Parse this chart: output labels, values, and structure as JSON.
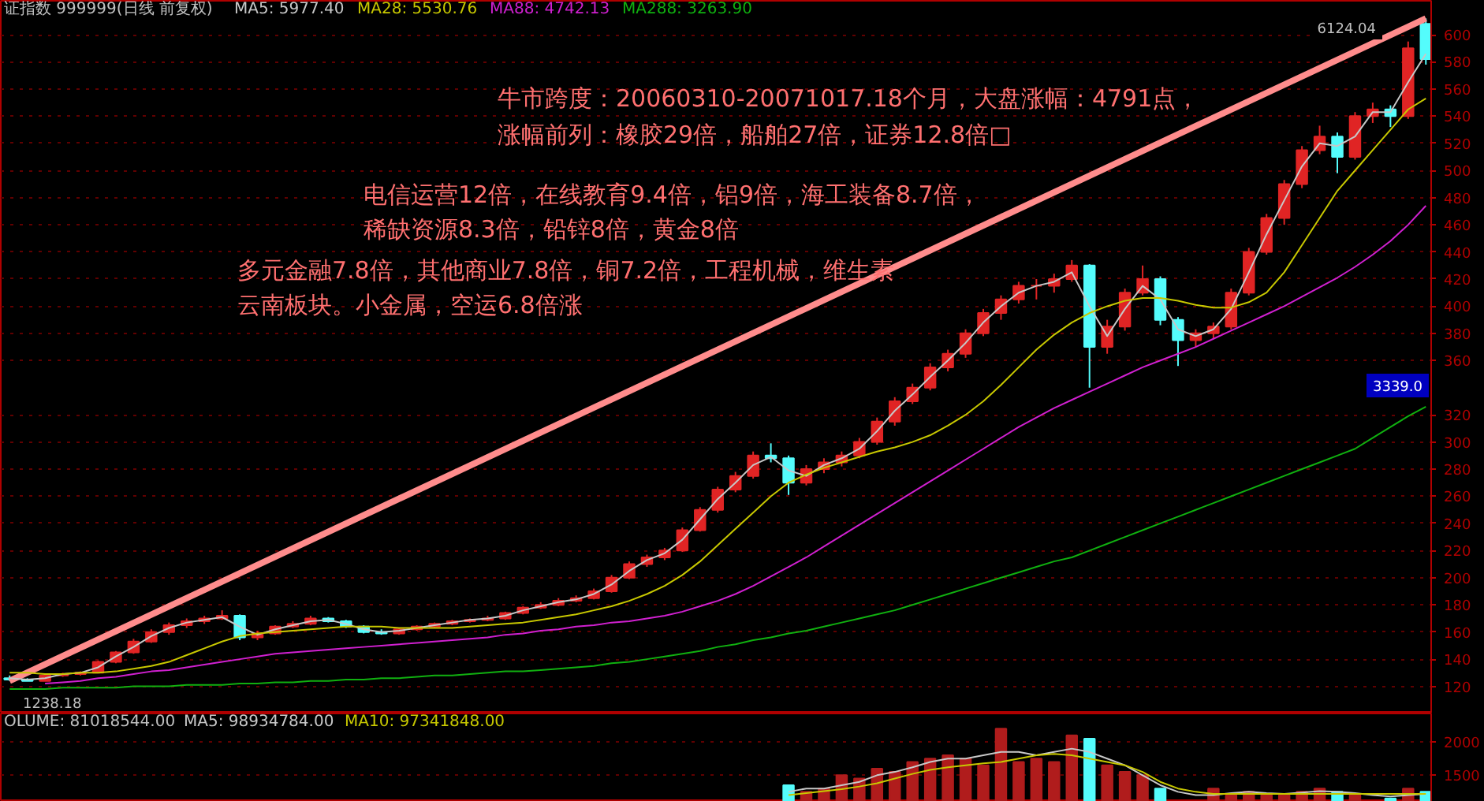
{
  "chart_data": [
    {
      "type": "candlestick",
      "title": "证指数 999999(日线 前复权)",
      "legend": "top left",
      "grid": "y",
      "tick_labels": "y",
      "categories": [
        null,
        null,
        null,
        null,
        null,
        null,
        null,
        null,
        null,
        null,
        null,
        null,
        null,
        null,
        null,
        null,
        null,
        null,
        null,
        null,
        null,
        null,
        null,
        null,
        null,
        null,
        null,
        null,
        null,
        null,
        null,
        null,
        null,
        null,
        null,
        null,
        null,
        null,
        null,
        null,
        null,
        null,
        null,
        null,
        null,
        null,
        null,
        null,
        null,
        null,
        null,
        null,
        null,
        null,
        null,
        null,
        null,
        null,
        null,
        null,
        null,
        null,
        null,
        null,
        null,
        null,
        null,
        null,
        null,
        null,
        null,
        null,
        null,
        null,
        null,
        null,
        null,
        null,
        null,
        null,
        null
      ],
      "ohlc": [
        [
          126,
          128,
          124,
          125
        ],
        [
          125,
          126,
          124,
          124
        ],
        [
          124,
          129,
          124,
          128
        ],
        [
          128,
          130,
          127,
          129
        ],
        [
          129,
          131,
          128,
          130
        ],
        [
          130,
          139,
          130,
          138
        ],
        [
          138,
          146,
          137,
          145
        ],
        [
          145,
          155,
          144,
          153
        ],
        [
          153,
          162,
          152,
          160
        ],
        [
          160,
          167,
          158,
          165
        ],
        [
          165,
          170,
          163,
          168
        ],
        [
          168,
          172,
          166,
          170
        ],
        [
          170,
          176,
          169,
          172
        ],
        [
          172,
          173,
          154,
          156
        ],
        [
          156,
          161,
          154,
          159
        ],
        [
          159,
          165,
          158,
          164
        ],
        [
          164,
          168,
          163,
          166
        ],
        [
          166,
          172,
          165,
          170
        ],
        [
          170,
          171,
          167,
          168
        ],
        [
          168,
          169,
          163,
          164
        ],
        [
          164,
          165,
          159,
          160
        ],
        [
          160,
          162,
          158,
          159
        ],
        [
          159,
          163,
          158,
          162
        ],
        [
          162,
          165,
          161,
          164
        ],
        [
          164,
          167,
          163,
          166
        ],
        [
          166,
          169,
          165,
          168
        ],
        [
          168,
          170,
          167,
          169
        ],
        [
          169,
          172,
          168,
          170
        ],
        [
          170,
          175,
          169,
          174
        ],
        [
          174,
          179,
          173,
          178
        ],
        [
          178,
          182,
          177,
          180
        ],
        [
          180,
          185,
          179,
          183
        ],
        [
          183,
          187,
          182,
          185
        ],
        [
          185,
          192,
          184,
          190
        ],
        [
          190,
          202,
          189,
          200
        ],
        [
          200,
          212,
          199,
          210
        ],
        [
          210,
          217,
          208,
          215
        ],
        [
          215,
          222,
          213,
          220
        ],
        [
          220,
          237,
          219,
          235
        ],
        [
          235,
          252,
          234,
          250
        ],
        [
          250,
          267,
          248,
          265
        ],
        [
          265,
          278,
          263,
          275
        ],
        [
          275,
          293,
          273,
          290
        ],
        [
          290,
          299,
          285,
          288
        ],
        [
          288,
          290,
          261,
          270
        ],
        [
          270,
          283,
          268,
          280
        ],
        [
          280,
          288,
          277,
          285
        ],
        [
          285,
          293,
          282,
          290
        ],
        [
          290,
          303,
          288,
          300
        ],
        [
          300,
          318,
          298,
          315
        ],
        [
          315,
          333,
          312,
          330
        ],
        [
          330,
          343,
          328,
          340
        ],
        [
          340,
          358,
          338,
          355
        ],
        [
          355,
          368,
          352,
          365
        ],
        [
          365,
          383,
          362,
          380
        ],
        [
          380,
          398,
          378,
          395
        ],
        [
          395,
          408,
          390,
          405
        ],
        [
          405,
          418,
          402,
          415
        ],
        [
          415,
          420,
          405,
          415
        ],
        [
          415,
          424,
          410,
          420
        ],
        [
          420,
          434,
          418,
          430
        ],
        [
          430,
          431,
          340,
          370
        ],
        [
          370,
          390,
          365,
          385
        ],
        [
          385,
          413,
          382,
          410
        ],
        [
          410,
          430,
          408,
          420
        ],
        [
          420,
          422,
          386,
          390
        ],
        [
          390,
          392,
          356,
          375
        ],
        [
          375,
          383,
          370,
          380
        ],
        [
          380,
          388,
          376,
          385
        ],
        [
          385,
          413,
          383,
          410
        ],
        [
          410,
          443,
          408,
          440
        ],
        [
          440,
          468,
          438,
          465
        ],
        [
          465,
          493,
          460,
          490
        ],
        [
          490,
          518,
          487,
          515
        ],
        [
          515,
          533,
          512,
          525
        ],
        [
          525,
          528,
          498,
          510
        ],
        [
          510,
          543,
          508,
          540
        ],
        [
          540,
          550,
          535,
          545
        ],
        [
          545,
          548,
          532,
          540
        ],
        [
          540,
          595,
          538,
          590
        ],
        [
          608,
          612,
          578,
          582
        ]
      ],
      "colors": [
        "#54fcfc",
        "#54fcfc",
        "#e02424",
        "#e02424",
        "#e02424",
        "#e02424",
        "#e02424",
        "#e02424",
        "#e02424",
        "#e02424",
        "#e02424",
        "#e02424",
        "#e02424",
        "#54fcfc",
        "#e02424",
        "#e02424",
        "#e02424",
        "#e02424",
        "#54fcfc",
        "#54fcfc",
        "#54fcfc",
        "#54fcfc",
        "#e02424",
        "#e02424",
        "#e02424",
        "#e02424",
        "#e02424",
        "#e02424",
        "#e02424",
        "#e02424",
        "#e02424",
        "#e02424",
        "#e02424",
        "#e02424",
        "#e02424",
        "#e02424",
        "#e02424",
        "#e02424",
        "#e02424",
        "#e02424",
        "#e02424",
        "#e02424",
        "#e02424",
        "#54fcfc",
        "#54fcfc",
        "#e02424",
        "#e02424",
        "#e02424",
        "#e02424",
        "#e02424",
        "#e02424",
        "#e02424",
        "#e02424",
        "#e02424",
        "#e02424",
        "#e02424",
        "#e02424",
        "#e02424",
        "#e02424",
        "#e02424",
        "#e02424",
        "#54fcfc",
        "#e02424",
        "#e02424",
        "#e02424",
        "#54fcfc",
        "#54fcfc",
        "#e02424",
        "#e02424",
        "#e02424",
        "#e02424",
        "#e02424",
        "#e02424",
        "#e02424",
        "#e02424",
        "#54fcfc",
        "#e02424",
        "#e02424",
        "#54fcfc",
        "#e02424",
        "#54fcfc"
      ],
      "series": [
        {
          "type": "line",
          "color": "#ff8c8c",
          "values": [
            124,
            null,
            null,
            null,
            null,
            null,
            null,
            null,
            null,
            null,
            null,
            null,
            null,
            null,
            null,
            null,
            null,
            null,
            null,
            null,
            null,
            null,
            null,
            null,
            null,
            null,
            null,
            null,
            null,
            null,
            null,
            null,
            null,
            null,
            null,
            null,
            null,
            null,
            null,
            null,
            null,
            null,
            null,
            null,
            null,
            null,
            null,
            null,
            null,
            null,
            null,
            null,
            null,
            null,
            null,
            null,
            null,
            null,
            null,
            null,
            null,
            null,
            null,
            null,
            null,
            null,
            null,
            null,
            null,
            null,
            null,
            null,
            null,
            null,
            null,
            null,
            null,
            null,
            null,
            null,
            612
          ]
        },
        {
          "name": "MA5: 5977.40",
          "type": "line",
          "color": "#c8c8c8",
          "values": [
            126,
            125,
            126,
            129,
            130,
            134,
            142,
            149,
            157,
            163,
            167,
            169,
            171,
            164,
            158,
            162,
            165,
            168,
            169,
            166,
            162,
            160,
            161,
            163,
            165,
            167,
            169,
            170,
            172,
            176,
            179,
            182,
            184,
            188,
            195,
            205,
            213,
            218,
            228,
            243,
            258,
            270,
            283,
            289,
            279,
            275,
            283,
            288,
            295,
            308,
            323,
            335,
            348,
            360,
            373,
            388,
            400,
            410,
            415,
            418,
            425,
            400,
            378,
            398,
            415,
            405,
            383,
            378,
            383,
            398,
            425,
            453,
            478,
            503,
            520,
            518,
            525,
            543,
            543,
            565,
            586
          ]
        },
        {
          "name": "MA28: 5530.76",
          "type": "line",
          "color": "#c8c800",
          "values": [
            130,
            130,
            129,
            129,
            130,
            130,
            131,
            133,
            135,
            138,
            143,
            148,
            153,
            157,
            159,
            160,
            161,
            162,
            163,
            164,
            164,
            164,
            163,
            163,
            163,
            163,
            164,
            165,
            166,
            167,
            169,
            171,
            173,
            176,
            179,
            183,
            188,
            194,
            202,
            212,
            224,
            236,
            248,
            260,
            270,
            276,
            281,
            285,
            289,
            293,
            296,
            300,
            305,
            312,
            320,
            330,
            342,
            355,
            368,
            379,
            388,
            395,
            400,
            404,
            406,
            406,
            404,
            401,
            399,
            399,
            403,
            410,
            425,
            445,
            465,
            485,
            500,
            515,
            530,
            545,
            553
          ]
        },
        {
          "name": "MA88: 4742.13",
          "type": "line",
          "color": "#d020d0",
          "values": [
            null,
            null,
            122,
            123,
            124,
            126,
            127,
            129,
            131,
            132,
            134,
            136,
            138,
            140,
            142,
            144,
            145,
            146,
            147,
            148,
            149,
            150,
            151,
            152,
            153,
            154,
            155,
            156,
            158,
            159,
            161,
            162,
            164,
            165,
            167,
            168,
            170,
            172,
            175,
            179,
            183,
            188,
            194,
            201,
            208,
            215,
            223,
            231,
            239,
            247,
            255,
            263,
            271,
            279,
            287,
            295,
            303,
            311,
            318,
            325,
            331,
            337,
            343,
            349,
            355,
            360,
            365,
            370,
            376,
            382,
            388,
            394,
            400,
            407,
            414,
            421,
            429,
            438,
            448,
            460,
            474
          ]
        },
        {
          "name": "MA288: 3263.90",
          "type": "line",
          "color": "#10b010",
          "values": [
            118,
            118,
            118,
            119,
            119,
            119,
            119,
            120,
            120,
            120,
            121,
            121,
            121,
            122,
            122,
            123,
            123,
            124,
            124,
            125,
            125,
            126,
            126,
            127,
            128,
            128,
            129,
            130,
            131,
            131,
            132,
            133,
            134,
            135,
            137,
            138,
            140,
            142,
            144,
            146,
            149,
            151,
            154,
            156,
            159,
            161,
            164,
            167,
            170,
            173,
            176,
            180,
            184,
            188,
            192,
            196,
            200,
            204,
            208,
            212,
            215,
            220,
            225,
            230,
            235,
            240,
            245,
            250,
            255,
            260,
            265,
            270,
            275,
            280,
            285,
            290,
            295,
            303,
            311,
            319,
            326
          ]
        }
      ],
      "ylim": [
        100,
        625
      ],
      "yticks": [
        120,
        140,
        160,
        180,
        200,
        220,
        240,
        260,
        280,
        300,
        320,
        360,
        380,
        400,
        420,
        440,
        460,
        480,
        500,
        520,
        540,
        560,
        580,
        600
      ],
      "annotations": [
        "牛市跨度：20060310-20071017.18个月，大盘涨幅：4791点，",
        "涨幅前列：橡胶29倍，船舶27倍，证券12.8倍□",
        "电信运营12倍，在线教育9.4倍，铝9倍，海工装备8.7倍，",
        "稀缺资源8.3倍，铅锌8倍，黄金8倍",
        "多元金融7.8倍，其他商业7.8倍，铜7.2倍，工程机械，维生素",
        "云南板块。小金属，空运6.8倍涨",
        "6124.04",
        "1238.18",
        "3339.0"
      ]
    },
    {
      "type": "bar",
      "title": "OLUME: 81018544.00",
      "legend": "top left",
      "grid": "y",
      "tick_labels": "y",
      "categories": [
        null,
        null,
        null,
        null,
        null,
        null,
        null,
        null,
        null,
        null,
        null,
        null,
        null,
        null,
        null,
        null,
        null,
        null,
        null,
        null,
        null,
        null,
        null,
        null,
        null,
        null,
        null,
        null,
        null,
        null,
        null,
        null,
        null,
        null,
        null,
        null,
        null,
        null,
        null,
        null,
        null,
        null,
        null,
        null,
        null,
        null,
        null,
        null,
        null,
        null,
        null,
        null,
        null,
        null,
        null,
        null,
        null,
        null,
        null,
        null,
        null,
        null,
        null,
        null,
        null,
        null,
        null,
        null,
        null,
        null,
        null,
        null,
        null,
        null,
        null,
        null,
        null,
        null,
        null,
        null,
        null
      ],
      "series": [
        {
          "type": "bar",
          "colors": [
            "#54fcfc",
            "#54fcfc",
            "#b01c1c",
            "#b01c1c",
            "#b01c1c",
            "#b01c1c",
            "#b01c1c",
            "#b01c1c",
            "#b01c1c",
            "#b01c1c",
            "#b01c1c",
            "#b01c1c",
            "#b01c1c",
            "#54fcfc",
            "#b01c1c",
            "#b01c1c",
            "#b01c1c",
            "#b01c1c",
            "#54fcfc",
            "#54fcfc",
            "#54fcfc",
            "#54fcfc",
            "#b01c1c",
            "#b01c1c",
            "#b01c1c",
            "#b01c1c",
            "#b01c1c",
            "#b01c1c",
            "#b01c1c",
            "#b01c1c",
            "#b01c1c",
            "#b01c1c",
            "#b01c1c",
            "#b01c1c",
            "#b01c1c",
            "#b01c1c",
            "#b01c1c",
            "#b01c1c",
            "#b01c1c",
            "#b01c1c",
            "#b01c1c",
            "#b01c1c",
            "#b01c1c",
            "#54fcfc",
            "#54fcfc",
            "#b01c1c",
            "#b01c1c",
            "#b01c1c",
            "#b01c1c",
            "#b01c1c",
            "#b01c1c",
            "#b01c1c",
            "#b01c1c",
            "#b01c1c",
            "#b01c1c",
            "#b01c1c",
            "#b01c1c",
            "#b01c1c",
            "#b01c1c",
            "#b01c1c",
            "#b01c1c",
            "#54fcfc",
            "#b01c1c",
            "#b01c1c",
            "#b01c1c",
            "#54fcfc",
            "#54fcfc",
            "#b01c1c",
            "#b01c1c",
            "#b01c1c",
            "#b01c1c",
            "#b01c1c",
            "#b01c1c",
            "#b01c1c",
            "#b01c1c",
            "#54fcfc",
            "#b01c1c",
            "#b01c1c",
            "#54fcfc",
            "#b01c1c",
            "#54fcfc"
          ],
          "values": [
            null,
            null,
            null,
            null,
            null,
            null,
            null,
            null,
            null,
            null,
            null,
            null,
            null,
            null,
            null,
            null,
            null,
            null,
            null,
            null,
            null,
            null,
            null,
            null,
            null,
            null,
            null,
            null,
            null,
            null,
            null,
            null,
            null,
            null,
            null,
            null,
            null,
            null,
            null,
            null,
            null,
            null,
            null,
            null,
            1350,
            1250,
            1300,
            1500,
            1450,
            1600,
            1550,
            1700,
            1750,
            1800,
            1750,
            1650,
            2200,
            1700,
            1750,
            1700,
            2100,
            2050,
            1650,
            1550,
            1500,
            1300,
            null,
            null,
            1300,
            1200,
            1250,
            1200,
            1200,
            1250,
            1300,
            1250,
            1200,
            null,
            1150,
            1300,
            1250
          ]
        },
        {
          "name": "MA5: 98934784.00",
          "type": "line",
          "color": "#c8c8c8",
          "values": [
            null,
            null,
            null,
            null,
            null,
            null,
            null,
            null,
            null,
            null,
            null,
            null,
            null,
            null,
            null,
            null,
            null,
            null,
            null,
            null,
            null,
            null,
            null,
            null,
            null,
            null,
            null,
            null,
            null,
            null,
            null,
            null,
            null,
            null,
            null,
            null,
            null,
            null,
            null,
            null,
            null,
            null,
            null,
            null,
            1250,
            1300,
            1300,
            1350,
            1400,
            1500,
            1550,
            1620,
            1700,
            1750,
            1750,
            1800,
            1850,
            1850,
            1800,
            1850,
            1900,
            1850,
            1750,
            1650,
            1500,
            1350,
            1250,
            1200,
            1200,
            1230,
            1250,
            1230,
            1220,
            1240,
            1260,
            1250,
            1230,
            1200,
            1180,
            1200,
            1220
          ]
        },
        {
          "name": "MA10: 97341848.00",
          "type": "line",
          "color": "#c8c800",
          "values": [
            null,
            null,
            null,
            null,
            null,
            null,
            null,
            null,
            null,
            null,
            null,
            null,
            null,
            null,
            null,
            null,
            null,
            null,
            null,
            null,
            null,
            null,
            null,
            null,
            null,
            null,
            null,
            null,
            null,
            null,
            null,
            null,
            null,
            null,
            null,
            null,
            null,
            null,
            null,
            null,
            null,
            null,
            null,
            null,
            1200,
            1230,
            1260,
            1290,
            1330,
            1380,
            1450,
            1520,
            1580,
            1620,
            1650,
            1680,
            1700,
            1750,
            1800,
            1820,
            1800,
            1750,
            1700,
            1650,
            1550,
            1400,
            1300,
            1250,
            1220,
            1220,
            1220,
            1220,
            1220,
            1220,
            1220,
            1220,
            1220,
            1220,
            1220,
            1220,
            1220
          ]
        }
      ],
      "ylim": [
        1100,
        2430
      ],
      "yticks": [
        1500,
        2000
      ]
    }
  ]
}
